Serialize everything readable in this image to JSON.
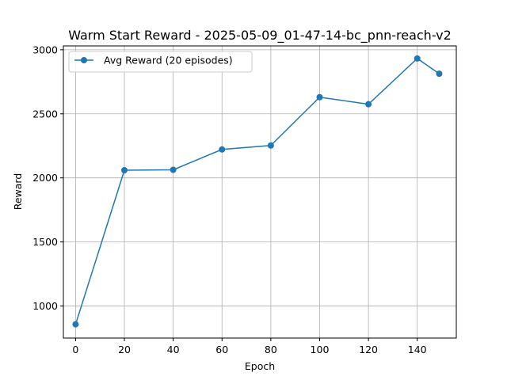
{
  "colors": {
    "series": "#1f77b4",
    "grid": "#b0b0b0",
    "text": "#000000"
  },
  "chart_data": {
    "type": "line",
    "title": "Warm Start Reward - 2025-05-09_01-47-14-bc_pnn-reach-v2",
    "xlabel": "Epoch",
    "ylabel": "Reward",
    "xlim": [
      -5,
      156
    ],
    "ylim": [
      750,
      3030
    ],
    "xticks": [
      0,
      20,
      40,
      60,
      80,
      100,
      120,
      140
    ],
    "yticks": [
      1000,
      1500,
      2000,
      2500,
      3000
    ],
    "grid": true,
    "legend": "upper-left",
    "marker": "circle",
    "series": [
      {
        "name": "Avg Reward (20 episodes)",
        "x": [
          0,
          20,
          40,
          60,
          80,
          100,
          120,
          140,
          149
        ],
        "y": [
          857,
          2060,
          2063,
          2222,
          2253,
          2630,
          2575,
          2932,
          2813
        ]
      }
    ]
  }
}
